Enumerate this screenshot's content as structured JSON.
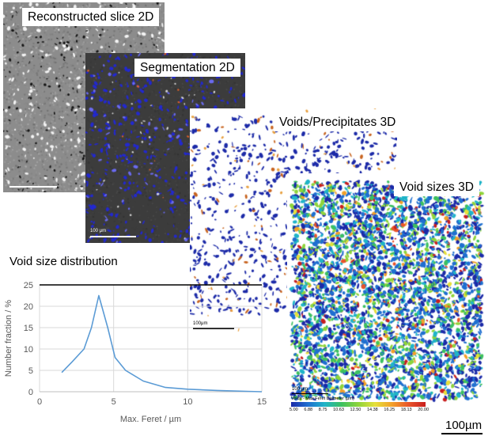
{
  "panels": {
    "slice": {
      "label": "Reconstructed slice 2D"
    },
    "segmentation": {
      "label": "Segmentation 2D",
      "scale_text": "100 μm"
    },
    "voids3d": {
      "label": "Voids/Precipitates 3D",
      "scale_text": "100μm"
    },
    "voidsizes3d": {
      "label": "Void sizes 3D",
      "scale_text": "100 μm",
      "colorbar_title": "Voids - Max Feret Diameter (μm)",
      "colorbar_ticks": [
        "5.00",
        "6.88",
        "8.75",
        "10.63",
        "12.50",
        "14.38",
        "16.25",
        "18.13",
        "20.00"
      ],
      "colorbar_colors": [
        "#1b2aa8",
        "#1f6fd0",
        "#1fb4c8",
        "#3cc060",
        "#8ed43a",
        "#e6e03a",
        "#f2a02a",
        "#e8542a",
        "#c81e1e"
      ]
    }
  },
  "scale_bar": {
    "text": "100µm"
  },
  "distribution": {
    "title": "Void size distribution"
  },
  "chart_data": {
    "type": "line",
    "title": "Void size distribution",
    "xlabel": "Max. Feret / µm",
    "ylabel": "Number fraction / %",
    "xlim": [
      0,
      15
    ],
    "ylim": [
      0,
      25
    ],
    "xticks": [
      0,
      5,
      10,
      15
    ],
    "yticks": [
      0,
      5,
      10,
      15,
      20,
      25
    ],
    "grid": true,
    "series_color": "#5b9bd5",
    "x": [
      1.5,
      2.2,
      3.0,
      3.5,
      4.0,
      4.6,
      5.1,
      5.8,
      7.0,
      8.5,
      10.0,
      12.0,
      14.0,
      15.0
    ],
    "y": [
      4.5,
      7.0,
      10.0,
      15.0,
      22.5,
      15.0,
      8.0,
      5.0,
      2.5,
      1.0,
      0.6,
      0.3,
      0.1,
      0.0
    ]
  }
}
